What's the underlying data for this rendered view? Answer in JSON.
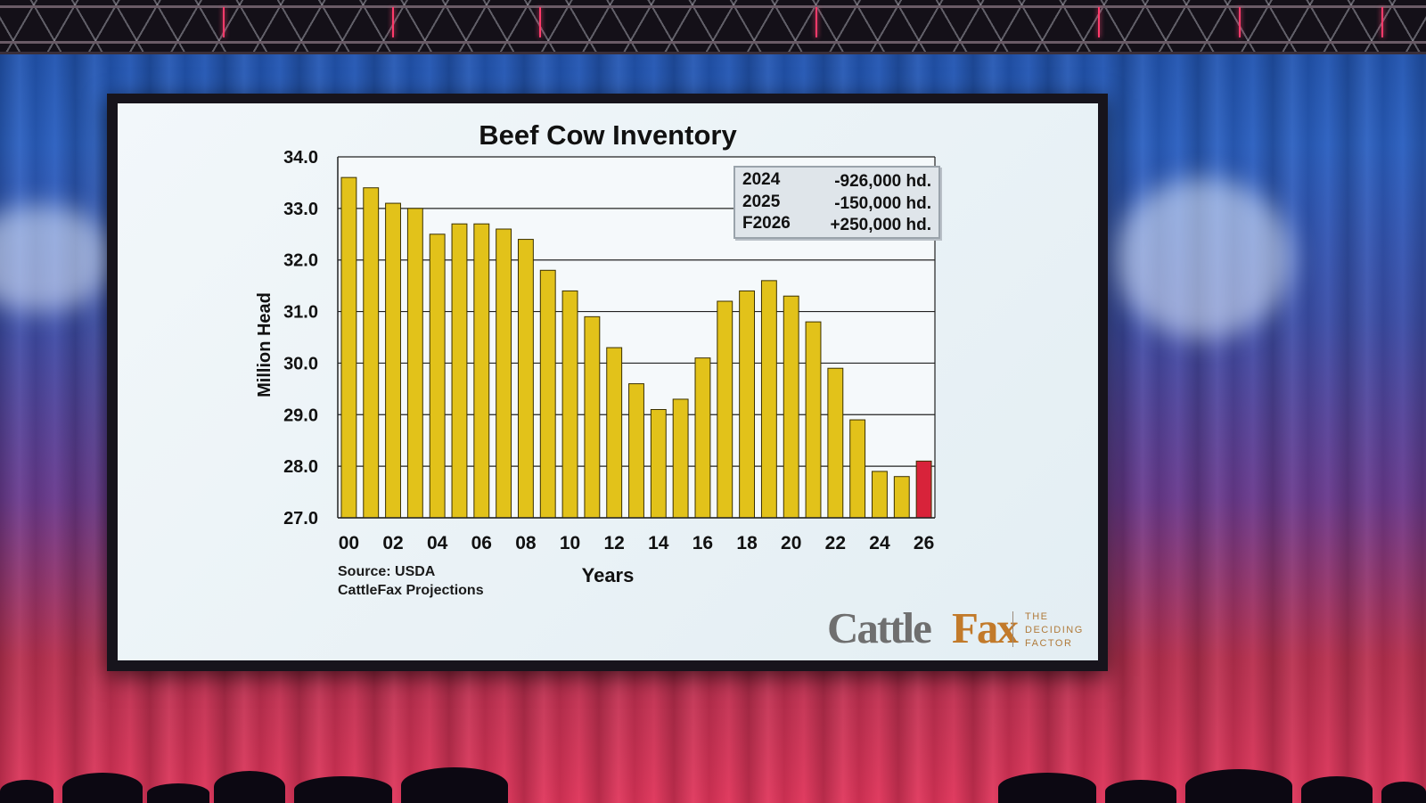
{
  "chart_data": {
    "type": "bar",
    "title": "Beef Cow Inventory",
    "ylabel": "Million Head",
    "xlabel": "Years",
    "ylim": [
      27.0,
      34.0
    ],
    "yticks": [
      "34.0",
      "33.0",
      "32.0",
      "31.0",
      "30.0",
      "29.0",
      "28.0",
      "27.0"
    ],
    "x_tick_labels": [
      "00",
      "02",
      "04",
      "06",
      "08",
      "10",
      "12",
      "14",
      "16",
      "18",
      "20",
      "22",
      "24",
      "26"
    ],
    "categories": [
      "00",
      "01",
      "02",
      "03",
      "04",
      "05",
      "06",
      "07",
      "08",
      "09",
      "10",
      "11",
      "12",
      "13",
      "14",
      "15",
      "16",
      "17",
      "18",
      "19",
      "20",
      "21",
      "22",
      "23",
      "24",
      "25",
      "26"
    ],
    "values": [
      33.6,
      33.4,
      33.1,
      33.0,
      32.5,
      32.7,
      32.7,
      32.6,
      32.4,
      31.8,
      31.4,
      30.9,
      30.3,
      29.6,
      29.1,
      29.3,
      30.1,
      31.2,
      31.4,
      31.6,
      31.3,
      30.8,
      29.9,
      28.9,
      27.9,
      27.8,
      28.1
    ],
    "bar_color": "#e2c21a",
    "highlight_color": "#d8233a",
    "highlight_index": 26,
    "grid": true,
    "annotation": {
      "rows": [
        {
          "year": "2024",
          "value": "-926,000 hd."
        },
        {
          "year": "2025",
          "value": "-150,000 hd."
        },
        {
          "year": "F2026",
          "value": "+250,000 hd."
        }
      ]
    },
    "source_lines": [
      "Source: USDA",
      "CattleFax Projections"
    ]
  },
  "logo": {
    "name_part1": "Cattle",
    "name_part2": "Fax",
    "tagline": [
      "THE",
      "DECIDING",
      "FACTOR"
    ]
  }
}
